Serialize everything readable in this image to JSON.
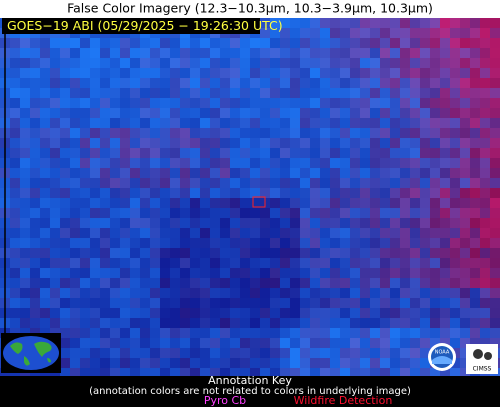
{
  "header": {
    "title": "False Color Imagery (12.3−10.3µm, 10.3−3.9µm, 10.3µm)"
  },
  "image": {
    "label": "GOES−19 ABI (05/29/2025 − 19:26:30 UTC)"
  },
  "logos": {
    "noaa": "NOAA",
    "cimss": "CIMSS"
  },
  "annotation_key": {
    "title": "Annotation Key",
    "note": "(annotation colors are not related to colors in underlying image)",
    "items": [
      {
        "label": "Pyro Cb"
      },
      {
        "label": "Wildfire Detection"
      }
    ]
  }
}
